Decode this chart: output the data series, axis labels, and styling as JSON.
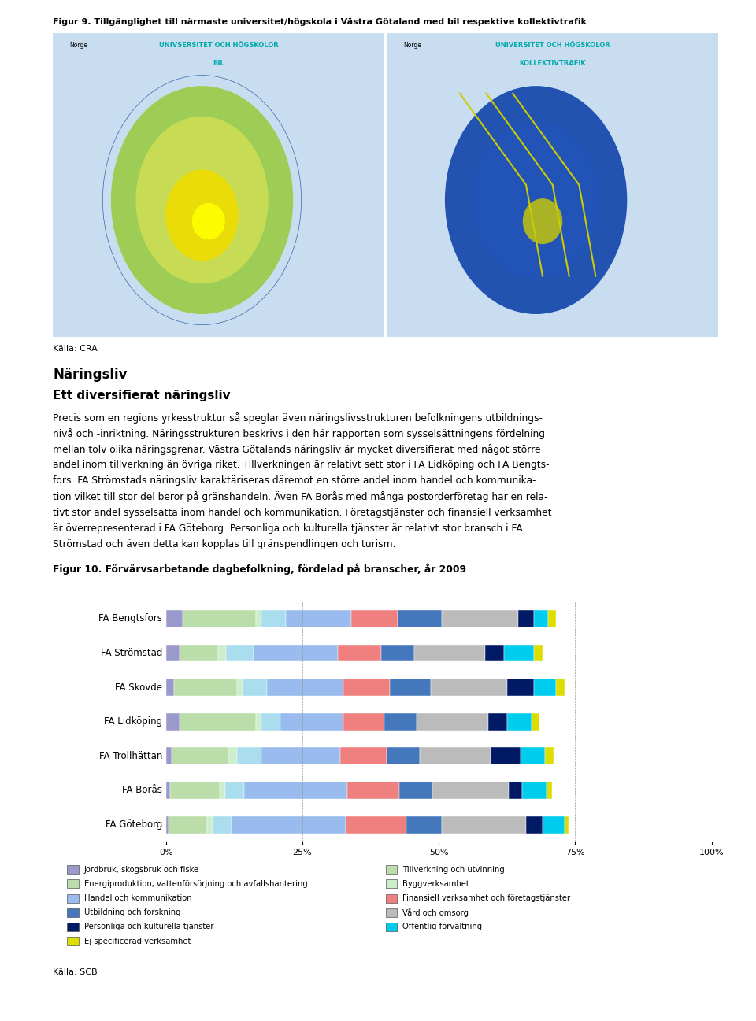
{
  "fig_title_image": "Figur 9. Tillgänglighet till närmaste universitet/högskola i Västra Götaland med bil respektive kollektivtrafik",
  "source_top": "Källa: CRA",
  "title_main": "Näringsliv",
  "title_sub": "Ett diversifierat näringsliv",
  "body_lines": [
    "Precis som en regions yrkesstruktur så speglar även näringslivsstrukturen befolkningens utbildnings-",
    "nivå och -inriktning. Näringsstrukturen beskrivs i den här rapporten som sysselsättningens fördelning",
    "mellan tolv olika näringsgrenar. Västra Götalands näringsliv är mycket diversifierat med något större",
    "andel inom tillverkning än övriga riket. Tillverkningen är relativt sett stor i FA Lidköping och FA Bengts-",
    "fors. FA Strömstads näringsliv karaktäriseras däremot en större andel inom handel och kommunika-",
    "tion vilket till stor del beror på gränshandeln. Även FA Borås med många postorderföretag har en rela-",
    "tivt stor andel sysselsatta inom handel och kommunikation. Företagstjänster och finansiell verksamhet",
    "är överrepresenterad i FA Göteborg. Personliga och kulturella tjänster är relativt stor bransch i FA",
    "Strömstad och även detta kan kopplas till gränspendlingen och turism."
  ],
  "fig_caption": "Figur 10. Förvärvsarbetande dagbefolkning, fördelad på branscher, år 2009",
  "source_bottom": "Källa: SCB",
  "regions": [
    "FA Bengtsfors",
    "FA Strömstad",
    "FA Skövde",
    "FA Lidköping",
    "FA Trollhättan",
    "FA Borås",
    "FA Göteborg"
  ],
  "seg_colors": [
    "#9999CC",
    "#BBDDAA",
    "#CCEECC",
    "#AADDEE",
    "#99BBEE",
    "#F08080",
    "#4477BB",
    "#BBBBBB",
    "#001A66",
    "#00CCEE",
    "#DDDD00"
  ],
  "region_data": {
    "FA Bengtsfors": [
      3.0,
      13.5,
      1.0,
      4.5,
      12.0,
      8.5,
      8.0,
      14.0,
      3.0,
      2.5,
      1.5
    ],
    "FA Strömstad": [
      2.5,
      7.0,
      1.5,
      5.0,
      15.5,
      8.0,
      6.0,
      13.0,
      3.5,
      5.5,
      1.5
    ],
    "FA Skövde": [
      1.5,
      11.5,
      1.0,
      4.5,
      14.0,
      8.5,
      7.5,
      14.0,
      5.0,
      4.0,
      1.5
    ],
    "FA Lidköping": [
      2.5,
      14.0,
      1.0,
      3.5,
      11.5,
      7.5,
      6.0,
      13.0,
      3.5,
      4.5,
      1.5
    ],
    "FA Trollhättan": [
      1.0,
      10.5,
      1.5,
      4.5,
      14.5,
      8.5,
      6.0,
      13.0,
      5.5,
      4.5,
      1.5
    ],
    "FA Borås": [
      0.8,
      9.0,
      1.0,
      3.5,
      19.0,
      9.5,
      6.0,
      14.0,
      2.5,
      4.5,
      1.0
    ],
    "FA Göteborg": [
      0.5,
      7.0,
      1.0,
      3.5,
      21.0,
      11.0,
      6.5,
      15.5,
      3.0,
      4.0,
      0.8
    ]
  },
  "legend_left": [
    [
      "Jordbruk, skogsbruk och fiske",
      "#9999CC"
    ],
    [
      "Energiproduktion, vattenförsörjning och avfallshantering",
      "#BBDDAA"
    ],
    [
      "Handel och kommunikation",
      "#99BBEE"
    ],
    [
      "Utbildning och forskning",
      "#4477BB"
    ],
    [
      "Personliga och kulturella tjänster",
      "#001A66"
    ],
    [
      "Ej specificerad verksamhet",
      "#DDDD00"
    ]
  ],
  "legend_right": [
    [
      "Tillverkning och utvinning",
      "#BBDDAA"
    ],
    [
      "Byggverksamhet",
      "#CCEECC"
    ],
    [
      "Finansiell verksamhet och företagstjänster",
      "#F08080"
    ],
    [
      "Vård och omsorg",
      "#BBBBBB"
    ],
    [
      "Offentlig förvaltning",
      "#00CCEE"
    ]
  ]
}
